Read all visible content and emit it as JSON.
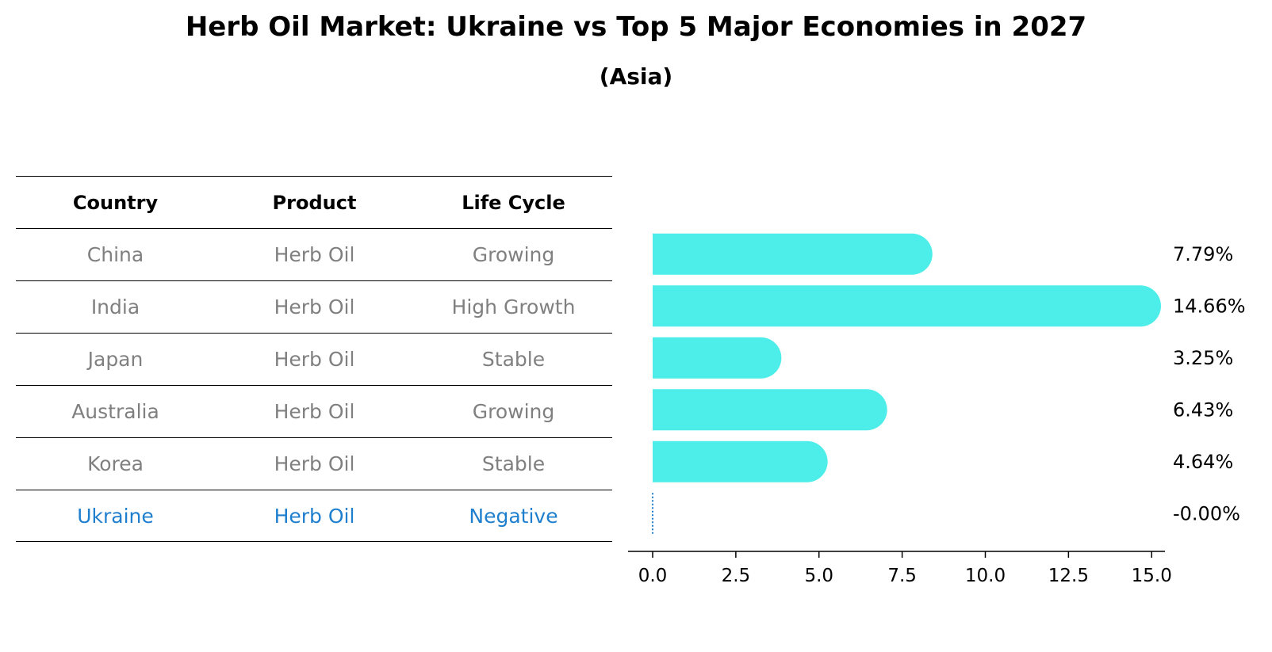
{
  "title": "Herb Oil Market: Ukraine vs Top 5 Major Economies in 2027",
  "subtitle": "(Asia)",
  "table": {
    "headers": [
      "Country",
      "Product",
      "Life Cycle"
    ],
    "rows": [
      {
        "country": "China",
        "product": "Herb Oil",
        "life_cycle": "Growing"
      },
      {
        "country": "India",
        "product": "Herb Oil",
        "life_cycle": "High Growth"
      },
      {
        "country": "Japan",
        "product": "Herb Oil",
        "life_cycle": "Stable"
      },
      {
        "country": "Australia",
        "product": "Herb Oil",
        "life_cycle": "Growing"
      },
      {
        "country": "Korea",
        "product": "Herb Oil",
        "life_cycle": "Stable"
      },
      {
        "country": "Ukraine",
        "product": "Herb Oil",
        "life_cycle": "Negative"
      }
    ],
    "highlight_row": "Ukraine",
    "colors": {
      "normal_text": "#808080",
      "highlight_text": "#1f7fcf"
    }
  },
  "chart_data": {
    "type": "bar",
    "orientation": "horizontal",
    "categories": [
      "China",
      "India",
      "Japan",
      "Australia",
      "Korea",
      "Ukraine"
    ],
    "values": [
      7.79,
      14.66,
      3.25,
      6.43,
      4.64,
      -0.0
    ],
    "value_labels": [
      "7.79%",
      "14.66%",
      "3.25%",
      "6.43%",
      "4.64%",
      "-0.00%"
    ],
    "xlim": [
      -0.7,
      15.1
    ],
    "xticks": [
      0.0,
      2.5,
      5.0,
      7.5,
      10.0,
      12.5,
      15.0
    ],
    "xtick_labels": [
      "0.0",
      "2.5",
      "5.0",
      "7.5",
      "10.0",
      "12.5",
      "15.0"
    ],
    "bar_color": "#4dede9",
    "zero_line_color": "#1f7fcf",
    "grid": false
  }
}
